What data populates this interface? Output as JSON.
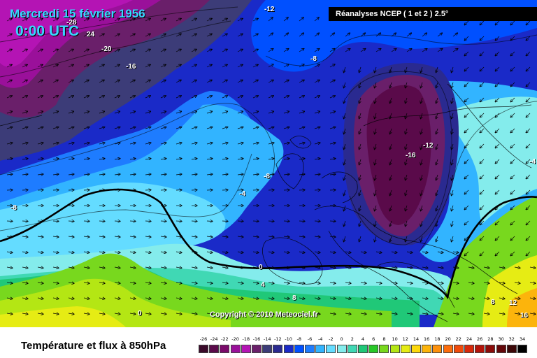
{
  "header": {
    "date": "Mercredi 15 février 1956",
    "time": "0:00 UTC",
    "source": "Réanalyses NCEP ( 1 et 2 ) 2.5°",
    "copyright": "Copyright © 2010 Meteociel.fr"
  },
  "footer": {
    "title": "Température et flux à 850hPa"
  },
  "scale": {
    "values": [
      "-26",
      "-24",
      "-22",
      "-20",
      "-18",
      "-16",
      "-14",
      "-12",
      "-10",
      "-8",
      "-6",
      "-4",
      "-2",
      "0",
      "2",
      "4",
      "6",
      "8",
      "10",
      "12",
      "14",
      "16",
      "18",
      "20",
      "22",
      "24",
      "26",
      "28",
      "30",
      "32",
      "34"
    ],
    "colors": [
      "#3a0a2a",
      "#5a0a4a",
      "#7a0a6a",
      "#9a109a",
      "#b414b4",
      "#6a1f6a",
      "#3c3c78",
      "#2a2a90",
      "#1a2ac8",
      "#0050ff",
      "#1e7cff",
      "#32b4ff",
      "#64dcff",
      "#84ecec",
      "#40d8b4",
      "#20c878",
      "#28c828",
      "#78d81e",
      "#b4e614",
      "#e6ec14",
      "#fcd80c",
      "#fcb40c",
      "#fc900c",
      "#fc6c0c",
      "#f04a0a",
      "#d8280a",
      "#b4140a",
      "#8c0c0a",
      "#64080a",
      "#3c0808",
      "#000000"
    ]
  },
  "map": {
    "colors": {
      "violet": "#b414b4",
      "deep_indigo": "#3c3c78",
      "indigo": "#2a2a90",
      "royal_blue": "#1a2ac8",
      "blue": "#0050ff",
      "mid_blue": "#1e7cff",
      "sky": "#32b4ff",
      "cyan": "#64dcff",
      "pale_cyan": "#84ecec",
      "teal": "#40d8b4",
      "green": "#20c878",
      "lime": "#78d81e",
      "yellow_green": "#b4e614",
      "yellow": "#e6ec14",
      "orange": "#fcb40c",
      "cold_pool": "#5a0a4a"
    },
    "isotherm_labels": [
      "-12",
      "-28",
      "24",
      "-20",
      "-16",
      "-8",
      "-8",
      "-16",
      "-12",
      "-8",
      "-4",
      "0",
      "4",
      "8",
      "0",
      "8",
      "12",
      "16",
      "-4"
    ],
    "wind_arrows": "arrow-icon"
  }
}
